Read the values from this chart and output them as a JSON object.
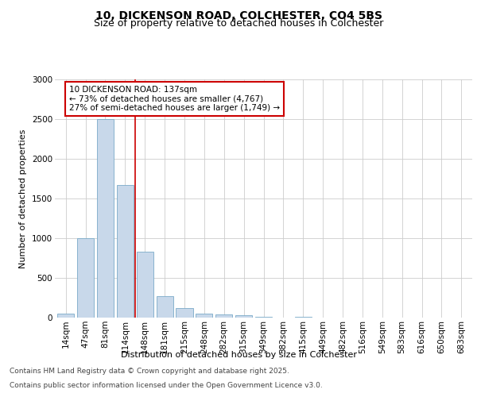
{
  "title_line1": "10, DICKENSON ROAD, COLCHESTER, CO4 5BS",
  "title_line2": "Size of property relative to detached houses in Colchester",
  "xlabel": "Distribution of detached houses by size in Colchester",
  "ylabel": "Number of detached properties",
  "footer_line1": "Contains HM Land Registry data © Crown copyright and database right 2025.",
  "footer_line2": "Contains public sector information licensed under the Open Government Licence v3.0.",
  "annotation_line1": "10 DICKENSON ROAD: 137sqm",
  "annotation_line2": "← 73% of detached houses are smaller (4,767)",
  "annotation_line3": "27% of semi-detached houses are larger (1,749) →",
  "bar_labels": [
    "14sqm",
    "47sqm",
    "81sqm",
    "114sqm",
    "148sqm",
    "181sqm",
    "215sqm",
    "248sqm",
    "282sqm",
    "315sqm",
    "349sqm",
    "382sqm",
    "415sqm",
    "449sqm",
    "482sqm",
    "516sqm",
    "549sqm",
    "583sqm",
    "616sqm",
    "650sqm",
    "683sqm"
  ],
  "bar_values": [
    50,
    1000,
    2500,
    1670,
    830,
    270,
    120,
    55,
    40,
    30,
    15,
    0,
    15,
    0,
    0,
    0,
    0,
    0,
    0,
    0,
    0
  ],
  "bar_color": "#c8d8ea",
  "bar_edge_color": "#7aaac8",
  "vline_x_index": 3.5,
  "vline_color": "#cc0000",
  "ylim": [
    0,
    3000
  ],
  "yticks": [
    0,
    500,
    1000,
    1500,
    2000,
    2500,
    3000
  ],
  "annotation_box_color": "#cc0000",
  "background_color": "#ffffff",
  "grid_color": "#cccccc",
  "title_fontsize": 10,
  "subtitle_fontsize": 9,
  "ylabel_fontsize": 8,
  "xlabel_fontsize": 8,
  "tick_fontsize": 7.5,
  "annotation_fontsize": 7.5,
  "footer_fontsize": 6.5
}
